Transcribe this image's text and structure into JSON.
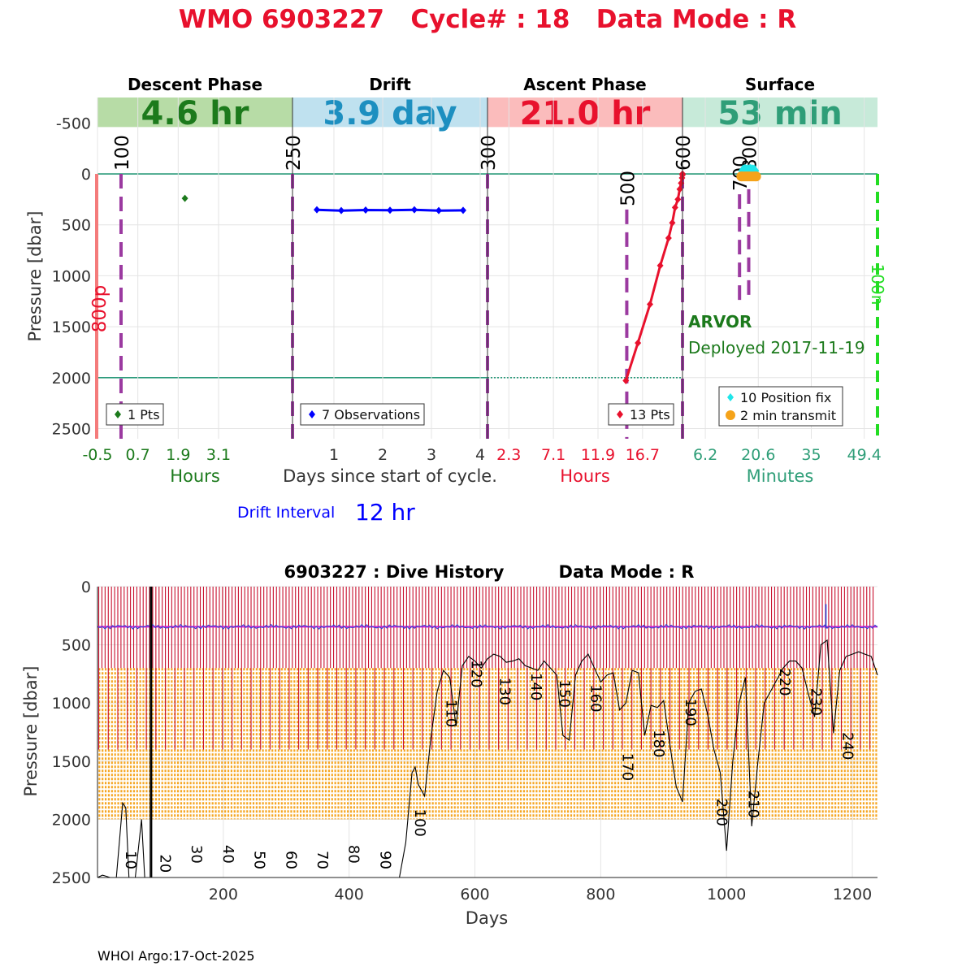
{
  "header": {
    "title": "WMO 6903227   Cycle# : 18   Data Mode : R",
    "title_color": "#e8112d"
  },
  "phases": [
    {
      "name": "Descent Phase",
      "duration": "4.6 hr",
      "band_color": "#b7dca6",
      "text_color": "#1c7a1c"
    },
    {
      "name": "Drift",
      "duration": "3.9 day",
      "band_color": "#bfe1ef",
      "text_color": "#1d8fc0"
    },
    {
      "name": "Ascent Phase",
      "duration": "21.0 hr",
      "band_color": "#fbbcbc",
      "text_color": "#e8112d"
    },
    {
      "name": "Surface",
      "duration": "53 min",
      "band_color": "#c7ead9",
      "text_color": "#2f9e78"
    }
  ],
  "chart_data": [
    {
      "type": "scatter",
      "title": "WMO 6903227 Cycle# : 18 Data Mode : R",
      "ylabel": "Pressure [dbar]",
      "xlabel": "Days since start of cycle.",
      "ylim": [
        2600,
        -750
      ],
      "yticks": [
        -500,
        0,
        500,
        1000,
        1500,
        2000,
        2500
      ],
      "reference_lines": [
        0,
        2000
      ],
      "panels": [
        {
          "name": "Descent Phase",
          "xlabel": "Hours",
          "xlabel_color": "#1c7a1c",
          "xlim": [
            -0.5,
            5.3
          ],
          "xticks": [
            -0.5,
            0.7,
            1.9,
            3.1
          ],
          "xtick_labels": [
            "-0.5",
            "0.7",
            "1.9",
            "3.1"
          ],
          "series": [
            {
              "name": "1 Pts",
              "color": "#1c7a1c",
              "x": [
                2.1
              ],
              "y": [
                240
              ]
            }
          ],
          "legend": [
            "1 Pts"
          ],
          "vlines": [
            {
              "x": 0.2,
              "label": "100"
            },
            {
              "x": 5.3,
              "label": "250"
            }
          ],
          "side_label": "800p"
        },
        {
          "name": "Drift",
          "xlabel": "Days since start of cycle.",
          "xlim": [
            0.15,
            4.15
          ],
          "xticks": [
            1,
            2,
            3,
            4
          ],
          "xtick_labels": [
            "1",
            "2",
            "3",
            "4"
          ],
          "series": [
            {
              "name": "7 Observations",
              "color": "#0000ff",
              "x": [
                0.65,
                1.15,
                1.65,
                2.15,
                2.65,
                3.15,
                3.65
              ],
              "y": [
                352,
                360,
                355,
                357,
                352,
                360,
                358
              ]
            }
          ],
          "legend": [
            "7 Observations"
          ],
          "vlines": [
            {
              "x": 4.15,
              "label": "300"
            }
          ]
        },
        {
          "name": "Ascent Phase",
          "xlabel": "Hours",
          "xlabel_color": "#e8112d",
          "xlim": [
            0,
            21.0
          ],
          "xticks": [
            2.3,
            7.1,
            11.9,
            16.7
          ],
          "xtick_labels": [
            "2.3",
            "7.1",
            "11.9",
            "16.7"
          ],
          "series": [
            {
              "name": "13 Pts",
              "color": "#e8112d",
              "x": [
                14.9,
                16.2,
                17.5,
                18.6,
                19.5,
                19.9,
                20.2,
                20.5,
                20.7,
                20.85,
                20.95,
                21.0,
                21.0
              ],
              "y": [
                2030,
                1660,
                1280,
                900,
                630,
                480,
                330,
                250,
                150,
                90,
                40,
                10,
                0
              ]
            }
          ],
          "legend": [
            "13 Pts"
          ],
          "vlines": [
            {
              "x": 15.0,
              "label": "500",
              "y_from": 350
            },
            {
              "x": 21.0,
              "label": "600"
            }
          ]
        },
        {
          "name": "Surface",
          "xlabel": "Minutes",
          "xlabel_color": "#2f9e78",
          "xlim": [
            0,
            53
          ],
          "xticks": [
            6.2,
            20.6,
            35,
            49.4
          ],
          "xtick_labels": [
            "6.2",
            "20.6",
            "35",
            "49.4"
          ],
          "series": [
            {
              "name": "10 Position fix",
              "color": "#1fe6ea",
              "x": [
                16.5,
                17,
                17.5,
                18,
                18.5,
                19,
                19.5,
                17.2,
                18.2,
                19.2
              ],
              "y": [
                -30,
                -35,
                -30,
                -30,
                -35,
                -30,
                -30,
                -25,
                -25,
                -25
              ]
            },
            {
              "name": "2 min transmit",
              "color": "#f5a31a",
              "x": [
                16.0,
                20.0
              ],
              "y": [
                25,
                25
              ]
            }
          ],
          "legend": [
            "10 Position fix",
            "2 min transmit"
          ],
          "vlines": [
            {
              "x": 15.5,
              "label": "700",
              "y_from": 200,
              "y_to": 1300
            },
            {
              "x": 18,
              "label": "800",
              "y_from": 150,
              "y_to": 1200
            }
          ],
          "side_label": "100n",
          "annotation_title": "ARVOR",
          "annotation_sub": "Deployed 2017-11-19"
        }
      ],
      "drift_interval_label": "Drift Interval",
      "drift_interval_value": "12 hr"
    },
    {
      "type": "line",
      "title": "6903227 : Dive History",
      "subtitle": "Data Mode : R",
      "xlabel": "Days",
      "ylabel": "Pressure [dbar]",
      "xlim": [
        0,
        1240
      ],
      "ylim": [
        2500,
        0
      ],
      "xticks": [
        200,
        400,
        600,
        800,
        1000,
        1200
      ],
      "yticks": [
        0,
        500,
        1000,
        1500,
        2000,
        2500
      ],
      "grid": true,
      "profile_count": 245,
      "profile_color": "#c8102e",
      "park_pressure": 345,
      "park_color": "#d020d0",
      "drift_trace_color": "#2a40d0",
      "surface_band_color": "#f5a623",
      "surface_band_range": [
        700,
        2000
      ],
      "bottom_trace": {
        "name": "ground depth",
        "color": "#000000",
        "x": [
          0,
          8,
          20,
          30,
          40,
          45,
          50,
          60,
          70,
          75,
          85,
          90,
          95,
          100,
          110,
          130,
          150,
          170,
          200,
          250,
          300,
          350,
          400,
          450,
          480,
          490,
          500,
          505,
          510,
          520,
          530,
          540,
          550,
          560,
          570,
          580,
          590,
          600,
          610,
          620,
          630,
          640,
          650,
          660,
          670,
          680,
          690,
          700,
          710,
          720,
          730,
          740,
          750,
          760,
          770,
          780,
          790,
          800,
          810,
          820,
          830,
          840,
          850,
          860,
          870,
          880,
          890,
          900,
          910,
          920,
          930,
          940,
          950,
          960,
          970,
          980,
          990,
          1000,
          1010,
          1020,
          1030,
          1040,
          1050,
          1060,
          1070,
          1080,
          1090,
          1100,
          1110,
          1120,
          1130,
          1140,
          1150,
          1160,
          1170,
          1180,
          1190,
          1200,
          1210,
          1220,
          1230,
          1240
        ],
        "y": [
          2500,
          2480,
          2600,
          2500,
          1860,
          1900,
          2600,
          2600,
          2000,
          2500,
          2600,
          2600,
          2600,
          2600,
          2600,
          2600,
          2600,
          2600,
          2600,
          2600,
          2600,
          2600,
          2600,
          2600,
          2500,
          2200,
          1600,
          1550,
          1700,
          1800,
          1300,
          900,
          720,
          780,
          1200,
          680,
          600,
          640,
          700,
          620,
          580,
          600,
          650,
          640,
          620,
          680,
          700,
          720,
          640,
          700,
          760,
          1280,
          1320,
          760,
          640,
          580,
          700,
          820,
          760,
          740,
          1060,
          1000,
          720,
          740,
          1280,
          1020,
          1040,
          980,
          1360,
          1720,
          1850,
          1000,
          900,
          880,
          1100,
          1400,
          1600,
          2270,
          1500,
          1000,
          780,
          2060,
          1500,
          1000,
          900,
          800,
          700,
          640,
          640,
          700,
          920,
          1120,
          500,
          460,
          1260,
          720,
          600,
          580,
          560,
          580,
          600,
          760
        ]
      },
      "cycle_labels": [
        {
          "x": 45,
          "y": 2270,
          "label": "10"
        },
        {
          "x": 100,
          "y": 2300,
          "label": "20"
        },
        {
          "x": 150,
          "y": 2220,
          "label": "30"
        },
        {
          "x": 200,
          "y": 2220,
          "label": "40"
        },
        {
          "x": 250,
          "y": 2270,
          "label": "50"
        },
        {
          "x": 300,
          "y": 2270,
          "label": "60"
        },
        {
          "x": 350,
          "y": 2270,
          "label": "70"
        },
        {
          "x": 400,
          "y": 2220,
          "label": "80"
        },
        {
          "x": 450,
          "y": 2270,
          "label": "90"
        },
        {
          "x": 505,
          "y": 1910,
          "label": "100"
        },
        {
          "x": 555,
          "y": 970,
          "label": "110"
        },
        {
          "x": 595,
          "y": 630,
          "label": "120"
        },
        {
          "x": 640,
          "y": 780,
          "label": "130"
        },
        {
          "x": 690,
          "y": 740,
          "label": "140"
        },
        {
          "x": 735,
          "y": 800,
          "label": "150"
        },
        {
          "x": 785,
          "y": 840,
          "label": "160"
        },
        {
          "x": 835,
          "y": 1430,
          "label": "170"
        },
        {
          "x": 885,
          "y": 1230,
          "label": "180"
        },
        {
          "x": 935,
          "y": 960,
          "label": "190"
        },
        {
          "x": 985,
          "y": 1820,
          "label": "200"
        },
        {
          "x": 1035,
          "y": 1750,
          "label": "210"
        },
        {
          "x": 1085,
          "y": 700,
          "label": "220"
        },
        {
          "x": 1135,
          "y": 870,
          "label": "230"
        },
        {
          "x": 1185,
          "y": 1250,
          "label": "240"
        }
      ]
    }
  ],
  "footer": {
    "credit": "WHOI Argo:17-Oct-2025"
  }
}
